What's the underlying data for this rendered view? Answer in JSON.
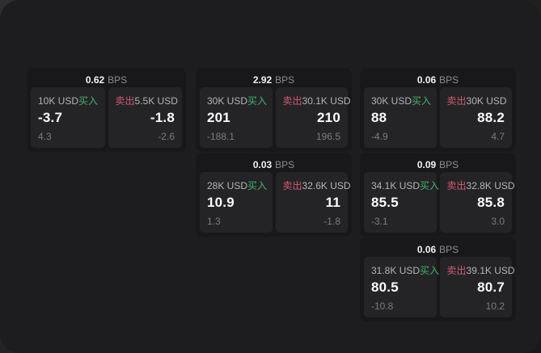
{
  "labels": {
    "bps": "BPS",
    "buy": "买入",
    "sell": "卖出"
  },
  "colors": {
    "buy": "#45b26b",
    "sell": "#d25a6e",
    "background": "#1d1d1f",
    "card": "#18181a",
    "panel": "#242427"
  },
  "cards": [
    {
      "bps": "0.62",
      "buy": {
        "amount": "10K USD",
        "value": "-3.7",
        "delta": "4.3"
      },
      "sell": {
        "amount": "5.5K USD",
        "value": "-1.8",
        "delta": "-2.6"
      }
    },
    {
      "bps": "2.92",
      "buy": {
        "amount": "30K USD",
        "value": "201",
        "delta": "-188.1"
      },
      "sell": {
        "amount": "30.1K USD",
        "value": "210",
        "delta": "196.5"
      }
    },
    {
      "bps": "0.06",
      "buy": {
        "amount": "30K USD",
        "value": "88",
        "delta": "-4.9"
      },
      "sell": {
        "amount": "30K USD",
        "value": "88.2",
        "delta": "4.7"
      }
    },
    {
      "bps": "0.03",
      "buy": {
        "amount": "28K USD",
        "value": "10.9",
        "delta": "1.3"
      },
      "sell": {
        "amount": "32.6K USD",
        "value": "11",
        "delta": "-1.8"
      }
    },
    {
      "bps": "0.09",
      "buy": {
        "amount": "34.1K USD",
        "value": "85.5",
        "delta": "-3.1"
      },
      "sell": {
        "amount": "32.8K USD",
        "value": "85.8",
        "delta": "3.0"
      }
    },
    {
      "bps": "0.06",
      "buy": {
        "amount": "31.8K USD",
        "value": "80.5",
        "delta": "-10.8"
      },
      "sell": {
        "amount": "39.1K USD",
        "value": "80.7",
        "delta": "10.2"
      }
    }
  ]
}
